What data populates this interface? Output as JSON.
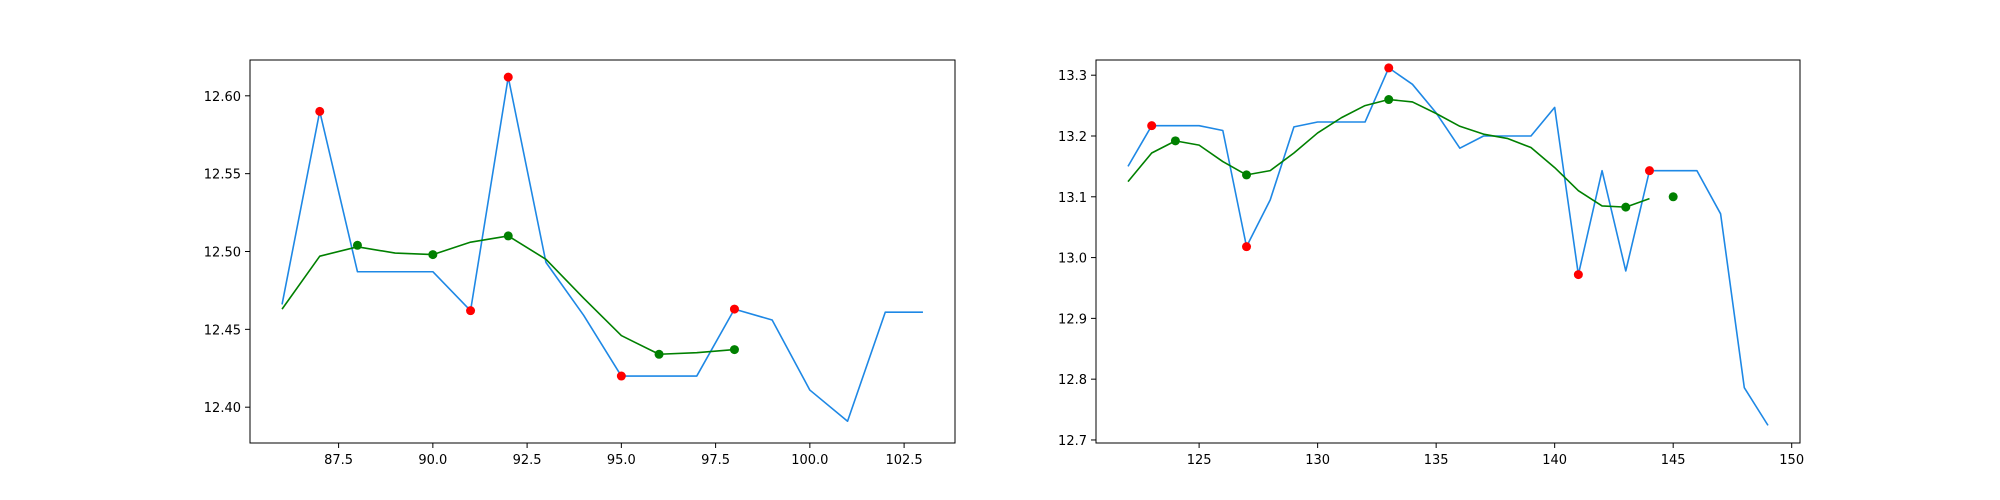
{
  "chart_data": [
    {
      "type": "line",
      "title": "",
      "xlabel": "",
      "ylabel": "",
      "xlim": [
        85.15,
        103.85
      ],
      "ylim": [
        12.377,
        12.623
      ],
      "xticks": [
        87.5,
        90.0,
        92.5,
        95.0,
        97.5,
        100.0,
        102.5
      ],
      "xtick_labels": [
        "87.5",
        "90.0",
        "92.5",
        "95.0",
        "97.5",
        "100.0",
        "102.5"
      ],
      "yticks": [
        12.4,
        12.45,
        12.5,
        12.55,
        12.6
      ],
      "ytick_labels": [
        "12.40",
        "12.45",
        "12.50",
        "12.55",
        "12.60"
      ],
      "grid": false,
      "legend": "none",
      "series": [
        {
          "kind": "line",
          "color": "#1e88e5",
          "x": [
            86,
            87,
            88,
            89,
            90,
            91,
            92,
            93,
            94,
            95,
            96,
            97,
            98,
            99,
            100,
            101,
            102,
            103
          ],
          "y": [
            12.466,
            12.59,
            12.487,
            12.487,
            12.487,
            12.462,
            12.612,
            12.493,
            12.459,
            12.42,
            12.42,
            12.42,
            12.463,
            12.456,
            12.411,
            12.391,
            12.461,
            12.461
          ]
        },
        {
          "kind": "line",
          "color": "#008000",
          "x": [
            86,
            87,
            88,
            89,
            90,
            91,
            92,
            93,
            94,
            95,
            96,
            97,
            98
          ],
          "y": [
            12.463,
            12.497,
            12.503,
            12.499,
            12.498,
            12.506,
            12.51,
            12.495,
            12.47,
            12.446,
            12.434,
            12.435,
            12.437
          ]
        },
        {
          "kind": "scatter",
          "color": "#ff0000",
          "x": [
            87,
            91,
            92,
            95,
            98
          ],
          "y": [
            12.59,
            12.462,
            12.612,
            12.42,
            12.463
          ]
        },
        {
          "kind": "scatter",
          "color": "#008000",
          "x": [
            88,
            90,
            92,
            96,
            98
          ],
          "y": [
            12.504,
            12.498,
            12.51,
            12.434,
            12.437
          ]
        }
      ]
    },
    {
      "type": "line",
      "title": "",
      "xlabel": "",
      "ylabel": "",
      "xlim": [
        120.65,
        150.35
      ],
      "ylim": [
        12.695,
        13.325
      ],
      "xticks": [
        125,
        130,
        135,
        140,
        145,
        150
      ],
      "xtick_labels": [
        "125",
        "130",
        "135",
        "140",
        "145",
        "150"
      ],
      "yticks": [
        12.7,
        12.8,
        12.9,
        13.0,
        13.1,
        13.2,
        13.3
      ],
      "ytick_labels": [
        "12.7",
        "12.8",
        "12.9",
        "13.0",
        "13.1",
        "13.2",
        "13.3"
      ],
      "grid": false,
      "legend": "none",
      "series": [
        {
          "kind": "line",
          "color": "#1e88e5",
          "x": [
            122,
            123,
            124,
            125,
            126,
            127,
            128,
            129,
            130,
            131,
            132,
            133,
            134,
            135,
            136,
            137,
            138,
            139,
            140,
            141,
            142,
            143,
            144,
            145,
            146,
            147,
            148,
            149
          ],
          "y": [
            13.15,
            13.217,
            13.217,
            13.217,
            13.209,
            13.018,
            13.095,
            13.215,
            13.223,
            13.223,
            13.223,
            13.312,
            13.285,
            13.238,
            13.18,
            13.2,
            13.2,
            13.2,
            13.247,
            12.972,
            13.143,
            12.978,
            13.143,
            13.143,
            13.143,
            13.072,
            12.786,
            12.724
          ]
        },
        {
          "kind": "line",
          "color": "#008000",
          "x": [
            122,
            123,
            124,
            125,
            126,
            127,
            128,
            129,
            130,
            131,
            132,
            133,
            134,
            135,
            136,
            137,
            138,
            139,
            140,
            141,
            142,
            143,
            144
          ],
          "y": [
            13.125,
            13.172,
            13.192,
            13.185,
            13.158,
            13.136,
            13.143,
            13.172,
            13.205,
            13.23,
            13.25,
            13.26,
            13.256,
            13.237,
            13.216,
            13.203,
            13.196,
            13.181,
            13.148,
            13.11,
            13.085,
            13.083,
            13.097
          ]
        },
        {
          "kind": "scatter",
          "color": "#ff0000",
          "x": [
            123,
            127,
            133,
            141,
            144
          ],
          "y": [
            13.217,
            13.018,
            13.312,
            12.972,
            13.143
          ]
        },
        {
          "kind": "scatter",
          "color": "#008000",
          "x": [
            124,
            127,
            133,
            143,
            145
          ],
          "y": [
            13.192,
            13.136,
            13.26,
            13.083,
            13.1
          ]
        }
      ]
    }
  ]
}
